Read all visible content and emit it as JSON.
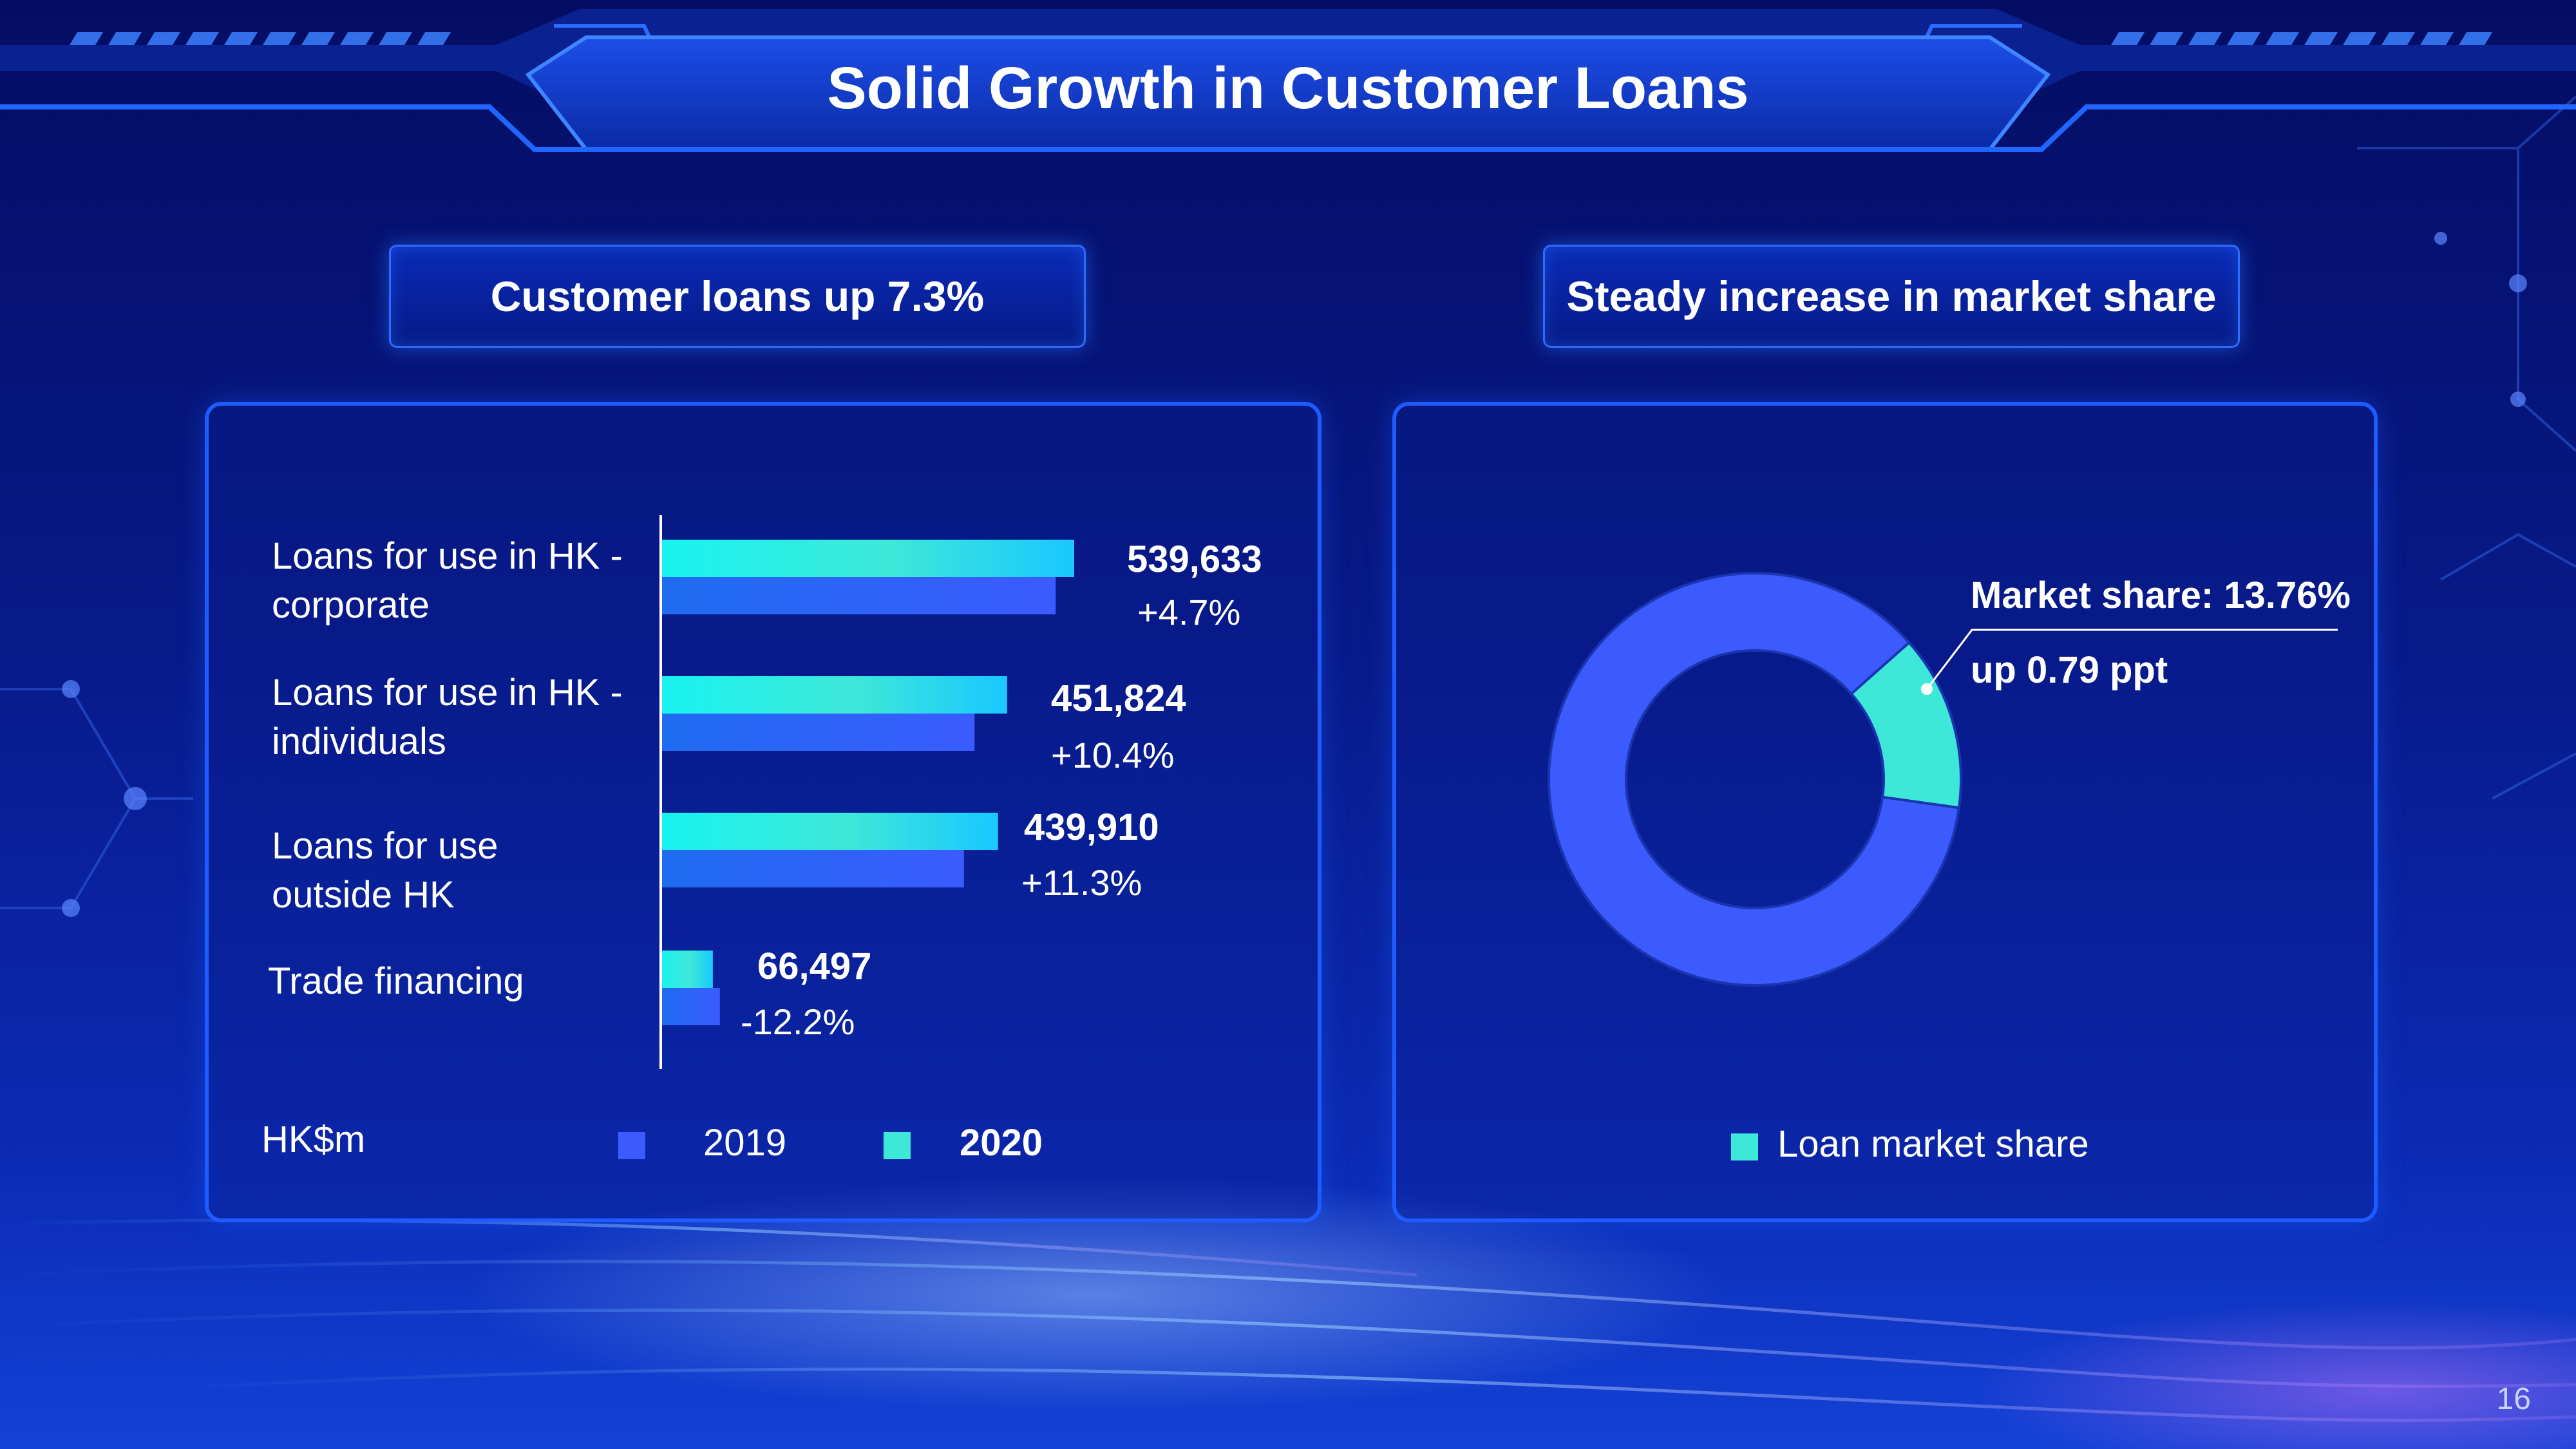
{
  "header": {
    "title": "Solid Growth in Customer Loans"
  },
  "left_panel": {
    "heading": "Customer loans up 7.3%",
    "unit": "HK$m"
  },
  "right_panel": {
    "heading": "Steady increase in market share",
    "callout_share": "Market share: 13.76%",
    "callout_change": "up 0.79 ppt"
  },
  "colors": {
    "series_2019": "#3b5bff",
    "series_2020": "#3ee8d8"
  },
  "page_number": "16",
  "chart_data": [
    {
      "type": "bar",
      "orientation": "horizontal",
      "categories": [
        "Loans for use in HK - corporate",
        "Loans for use in HK - individuals",
        "Loans for use outside HK",
        "Trade financing"
      ],
      "categories_display": [
        [
          "Loans for use in HK -",
          "corporate"
        ],
        [
          "Loans for use in HK -",
          "individuals"
        ],
        [
          "Loans for use",
          "outside HK"
        ],
        [
          "Trade financing"
        ]
      ],
      "series": [
        {
          "name": "2020",
          "values": [
            539633,
            451824,
            439910,
            66497
          ]
        },
        {
          "name": "2019",
          "values": [
            515400,
            409200,
            395300,
            75700
          ]
        }
      ],
      "value_labels": [
        "539,633",
        "451,824",
        "439,910",
        "66,497"
      ],
      "change_labels": [
        "+4.7%",
        "+10.4%",
        "+11.3%",
        "-12.2%"
      ],
      "legend": [
        "2019",
        "2020"
      ],
      "legend_placement": "bottom",
      "grid": false
    },
    {
      "type": "pie",
      "variant": "donut",
      "slices": [
        {
          "name": "Loan market share",
          "value": 13.76
        },
        {
          "name": "",
          "value": 86.24
        }
      ],
      "legend": [
        "Loan market share"
      ],
      "legend_placement": "bottom"
    }
  ]
}
